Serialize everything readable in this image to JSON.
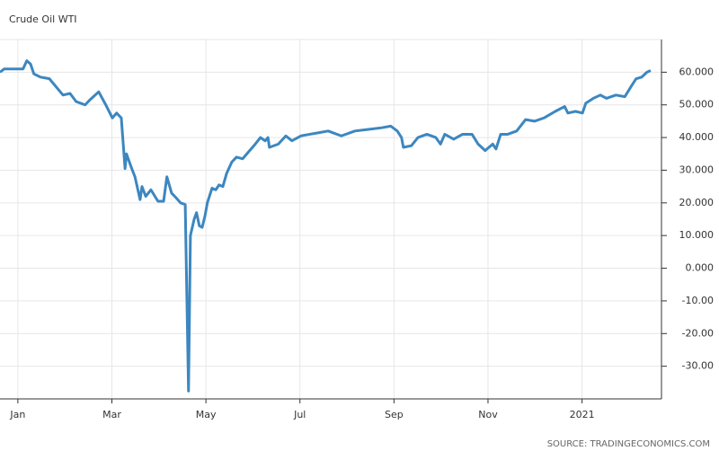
{
  "chart_data": {
    "type": "line",
    "title": "Crude Oil WTI",
    "source": "SOURCE: TRADINGECONOMICS.COM",
    "x": [
      -0.38,
      -0.29,
      -0.15,
      0,
      0.11,
      0.19,
      0.27,
      0.34,
      0.48,
      0.67,
      0.96,
      1.11,
      1.24,
      1.43,
      1.53,
      1.72,
      1.87,
      2.01,
      2.1,
      2.2,
      2.28,
      2.31,
      2.41,
      2.49,
      2.6,
      2.64,
      2.72,
      2.83,
      2.98,
      3.1,
      3.17,
      3.27,
      3.37,
      3.46,
      3.56,
      3.63,
      3.67,
      3.75,
      3.8,
      3.86,
      3.92,
      3.98,
      4.03,
      4.13,
      4.21,
      4.28,
      4.36,
      4.44,
      4.55,
      4.65,
      4.78,
      4.93,
      5.05,
      5.16,
      5.26,
      5.32,
      5.35,
      5.54,
      5.7,
      5.83,
      6.02,
      6.21,
      6.41,
      6.6,
      6.88,
      7.17,
      7.46,
      7.74,
      7.93,
      8.07,
      8.16,
      8.2,
      8.37,
      8.51,
      8.7,
      8.89,
      8.99,
      9.08,
      9.27,
      9.46,
      9.66,
      9.79,
      9.94,
      10.1,
      10.17,
      10.27,
      10.42,
      10.61,
      10.8,
      10.99,
      11.19,
      11.43,
      11.63,
      11.7,
      11.86,
      12.01,
      12.08,
      12.24,
      12.39,
      12.52,
      12.72,
      12.91,
      13.06,
      13.15,
      13.27,
      13.38,
      13.46
    ],
    "series": [
      {
        "name": "Crude Oil WTI",
        "color": "#3c87c0",
        "values": [
          60,
          61,
          61,
          61,
          61,
          63.5,
          62.5,
          59.5,
          58.5,
          58,
          53,
          53.5,
          51,
          50,
          51.5,
          54,
          50,
          46,
          47.5,
          46,
          30.5,
          35,
          31,
          28,
          21,
          25,
          22,
          24,
          20.5,
          20.5,
          28,
          23,
          21.5,
          20,
          19.5,
          -37.6,
          10,
          15,
          17,
          13,
          12.5,
          16,
          20,
          24.5,
          24,
          25.5,
          25,
          29,
          32.5,
          34,
          33.5,
          36,
          38,
          40,
          39,
          40,
          37,
          38,
          40.5,
          39,
          40.5,
          41,
          41.5,
          42,
          40.5,
          42,
          42.5,
          43,
          43.5,
          42,
          40,
          37,
          37.5,
          40,
          41,
          40,
          38,
          41,
          39.5,
          41,
          41,
          38,
          36,
          38,
          36.5,
          41,
          41,
          42,
          45.5,
          45,
          46,
          48,
          49.5,
          47.5,
          48,
          47.5,
          50.5,
          52,
          53,
          52,
          53,
          52.5,
          56,
          58,
          58.5,
          60,
          60.5
        ]
      }
    ],
    "xlim": [
      -0.38,
      13.69
    ],
    "xticks": [
      {
        "value": 0,
        "label": "Jan"
      },
      {
        "value": 2,
        "label": "Mar"
      },
      {
        "value": 4,
        "label": "May"
      },
      {
        "value": 6,
        "label": "Jul"
      },
      {
        "value": 8,
        "label": "Sep"
      },
      {
        "value": 10,
        "label": "Nov"
      },
      {
        "value": 12,
        "label": "2021"
      }
    ],
    "ylim": [
      -40,
      70
    ],
    "yticks": [
      {
        "value": 60,
        "label": "60.000"
      },
      {
        "value": 50,
        "label": "50.000"
      },
      {
        "value": 40,
        "label": "40.000"
      },
      {
        "value": 30,
        "label": "30.000"
      },
      {
        "value": 20,
        "label": "20.000"
      },
      {
        "value": 10,
        "label": "10.000"
      },
      {
        "value": 0,
        "label": "0.000"
      },
      {
        "value": -10,
        "label": "-10.00"
      },
      {
        "value": -20,
        "label": "-20.00"
      },
      {
        "value": -30,
        "label": "-30.00"
      }
    ],
    "grid": true
  }
}
